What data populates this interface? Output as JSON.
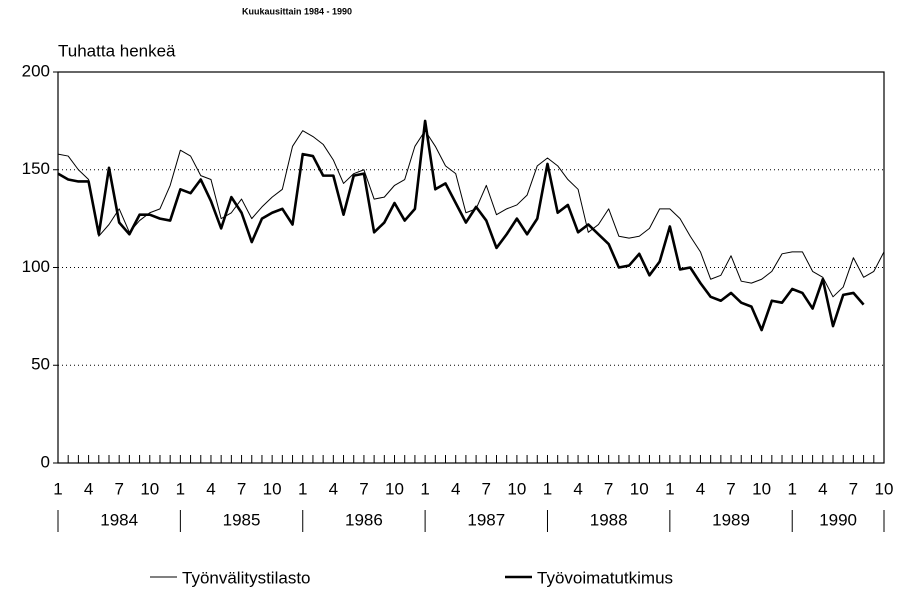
{
  "chart_data": {
    "type": "line",
    "subtitle": "Kuukausittain 1984 - 1990",
    "y_label": "Tuhatta henkeä",
    "categories": [
      "1",
      null,
      null,
      "4",
      null,
      null,
      "7",
      null,
      null,
      "10",
      null,
      null,
      "1",
      null,
      null,
      "4",
      null,
      null,
      "7",
      null,
      null,
      "10",
      null,
      null,
      "1",
      null,
      null,
      "4",
      null,
      null,
      "7",
      null,
      null,
      "10",
      null,
      null,
      "1",
      null,
      null,
      "4",
      null,
      null,
      "7",
      null,
      null,
      "10",
      null,
      null,
      "1",
      null,
      null,
      "4",
      null,
      null,
      "7",
      null,
      null,
      "10",
      null,
      null,
      "1",
      null,
      null,
      "4",
      null,
      null,
      "7",
      null,
      null,
      "10",
      null,
      null,
      "1",
      null,
      null,
      "4",
      null,
      null,
      "7",
      null,
      null,
      "10"
    ],
    "year_labels": [
      "1984",
      "1985",
      "1986",
      "1987",
      "1988",
      "1989",
      "1990"
    ],
    "series": [
      {
        "name": "Työnvälitystilasto",
        "color": "#000000",
        "width": 1,
        "values": [
          158,
          157,
          150,
          145,
          116,
          122,
          130,
          118,
          124,
          128,
          130,
          142,
          160,
          157,
          147,
          145,
          125,
          128,
          135,
          125,
          131,
          136,
          140,
          162,
          170,
          167,
          163,
          155,
          143,
          148,
          150,
          135,
          136,
          142,
          145,
          162,
          170,
          162,
          152,
          148,
          128,
          130,
          142,
          127,
          130,
          132,
          137,
          152,
          156,
          152,
          145,
          140,
          118,
          122,
          130,
          116,
          115,
          116,
          120,
          130,
          130,
          125,
          116,
          108,
          94,
          96,
          106,
          93,
          92,
          94,
          98,
          107,
          108,
          108,
          98,
          95,
          85,
          90,
          105,
          95,
          98,
          108
        ]
      },
      {
        "name": "Työvoimatutkimus",
        "color": "#000000",
        "width": 2.6,
        "values": [
          148,
          145,
          144,
          144,
          117,
          151,
          123,
          117,
          127,
          127,
          125,
          124,
          140,
          138,
          145,
          134,
          120,
          136,
          128,
          113,
          125,
          128,
          130,
          122,
          158,
          157,
          147,
          147,
          127,
          147,
          148,
          118,
          123,
          133,
          124,
          130,
          175,
          140,
          143,
          133,
          123,
          131,
          124,
          110,
          117,
          125,
          117,
          125,
          153,
          128,
          132,
          118,
          122,
          117,
          112,
          100,
          101,
          107,
          96,
          103,
          121,
          99,
          100,
          92,
          85,
          83,
          87,
          82,
          80,
          68,
          83,
          82,
          89,
          87,
          79,
          94,
          70,
          86,
          87,
          81,
          null,
          null
        ]
      }
    ],
    "ylim": [
      0,
      200
    ],
    "yticks": [
      0,
      50,
      100,
      150,
      200
    ],
    "grid": true
  }
}
